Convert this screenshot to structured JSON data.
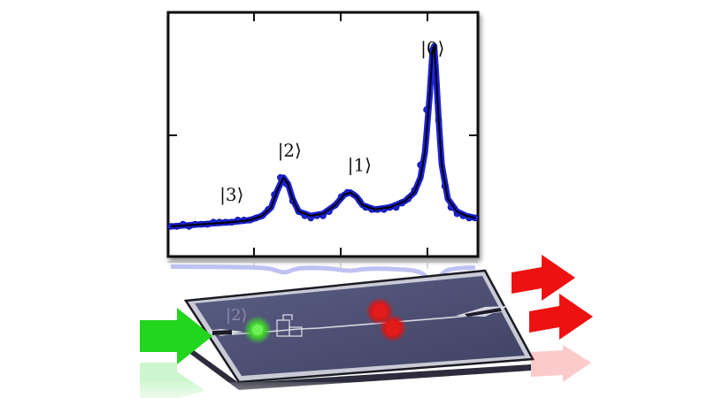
{
  "chart_data": {
    "type": "scatter",
    "title": "",
    "xlabel": "",
    "ylabel": "",
    "grid": false,
    "xlim": [
      0,
      1
    ],
    "ylim": [
      0,
      1
    ],
    "annotations": [
      {
        "text": "|3⟩",
        "x": 0.2,
        "y": 0.17
      },
      {
        "text": "|2⟩",
        "x": 0.39,
        "y": 0.38
      },
      {
        "text": "|1⟩",
        "x": 0.62,
        "y": 0.31
      },
      {
        "text": "|0⟩",
        "x": 0.86,
        "y": 0.86
      }
    ],
    "series": [
      {
        "role": "measured points",
        "marker_color": "#1a22d8",
        "x": [
          0.0,
          0.02,
          0.04,
          0.06,
          0.08,
          0.1,
          0.12,
          0.14,
          0.16,
          0.18,
          0.2,
          0.22,
          0.24,
          0.26,
          0.28,
          0.3,
          0.32,
          0.34,
          0.36,
          0.38,
          0.4,
          0.42,
          0.44,
          0.46,
          0.48,
          0.5,
          0.52,
          0.54,
          0.56,
          0.58,
          0.6,
          0.62,
          0.64,
          0.66,
          0.68,
          0.7,
          0.72,
          0.74,
          0.76,
          0.78,
          0.8,
          0.82,
          0.84,
          0.86,
          0.88,
          0.9,
          0.92,
          0.94,
          0.96,
          0.98,
          1.0
        ],
        "y": [
          0.05,
          0.05,
          0.06,
          0.05,
          0.06,
          0.06,
          0.06,
          0.07,
          0.07,
          0.07,
          0.07,
          0.08,
          0.08,
          0.08,
          0.09,
          0.1,
          0.13,
          0.2,
          0.28,
          0.25,
          0.17,
          0.12,
          0.1,
          0.09,
          0.1,
          0.1,
          0.12,
          0.15,
          0.19,
          0.21,
          0.2,
          0.17,
          0.14,
          0.13,
          0.13,
          0.13,
          0.14,
          0.14,
          0.16,
          0.18,
          0.22,
          0.34,
          0.6,
          0.88,
          0.55,
          0.24,
          0.14,
          0.11,
          0.1,
          0.09,
          0.09
        ]
      },
      {
        "role": "fit curve",
        "line_color": "#000000",
        "x": [
          0.0,
          0.1,
          0.2,
          0.26,
          0.3,
          0.33,
          0.35,
          0.37,
          0.385,
          0.4,
          0.42,
          0.46,
          0.5,
          0.54,
          0.57,
          0.59,
          0.61,
          0.63,
          0.67,
          0.72,
          0.77,
          0.8,
          0.82,
          0.835,
          0.85,
          0.86,
          0.865,
          0.87,
          0.88,
          0.89,
          0.91,
          0.94,
          0.97,
          1.0
        ],
        "y": [
          0.05,
          0.06,
          0.07,
          0.08,
          0.1,
          0.14,
          0.22,
          0.28,
          0.25,
          0.18,
          0.12,
          0.1,
          0.11,
          0.15,
          0.2,
          0.21,
          0.19,
          0.15,
          0.13,
          0.14,
          0.17,
          0.21,
          0.28,
          0.4,
          0.66,
          0.88,
          0.9,
          0.8,
          0.55,
          0.34,
          0.18,
          0.12,
          0.1,
          0.09
        ]
      }
    ]
  },
  "device": {
    "substrate_color": "#4a4d6e",
    "input_arrow_color": "#22d61e",
    "output_arrow_color": "#ee1111",
    "qubit_color": "#44e036",
    "photon_color": "#e21b1b",
    "reflection_label": "|2⟩"
  }
}
